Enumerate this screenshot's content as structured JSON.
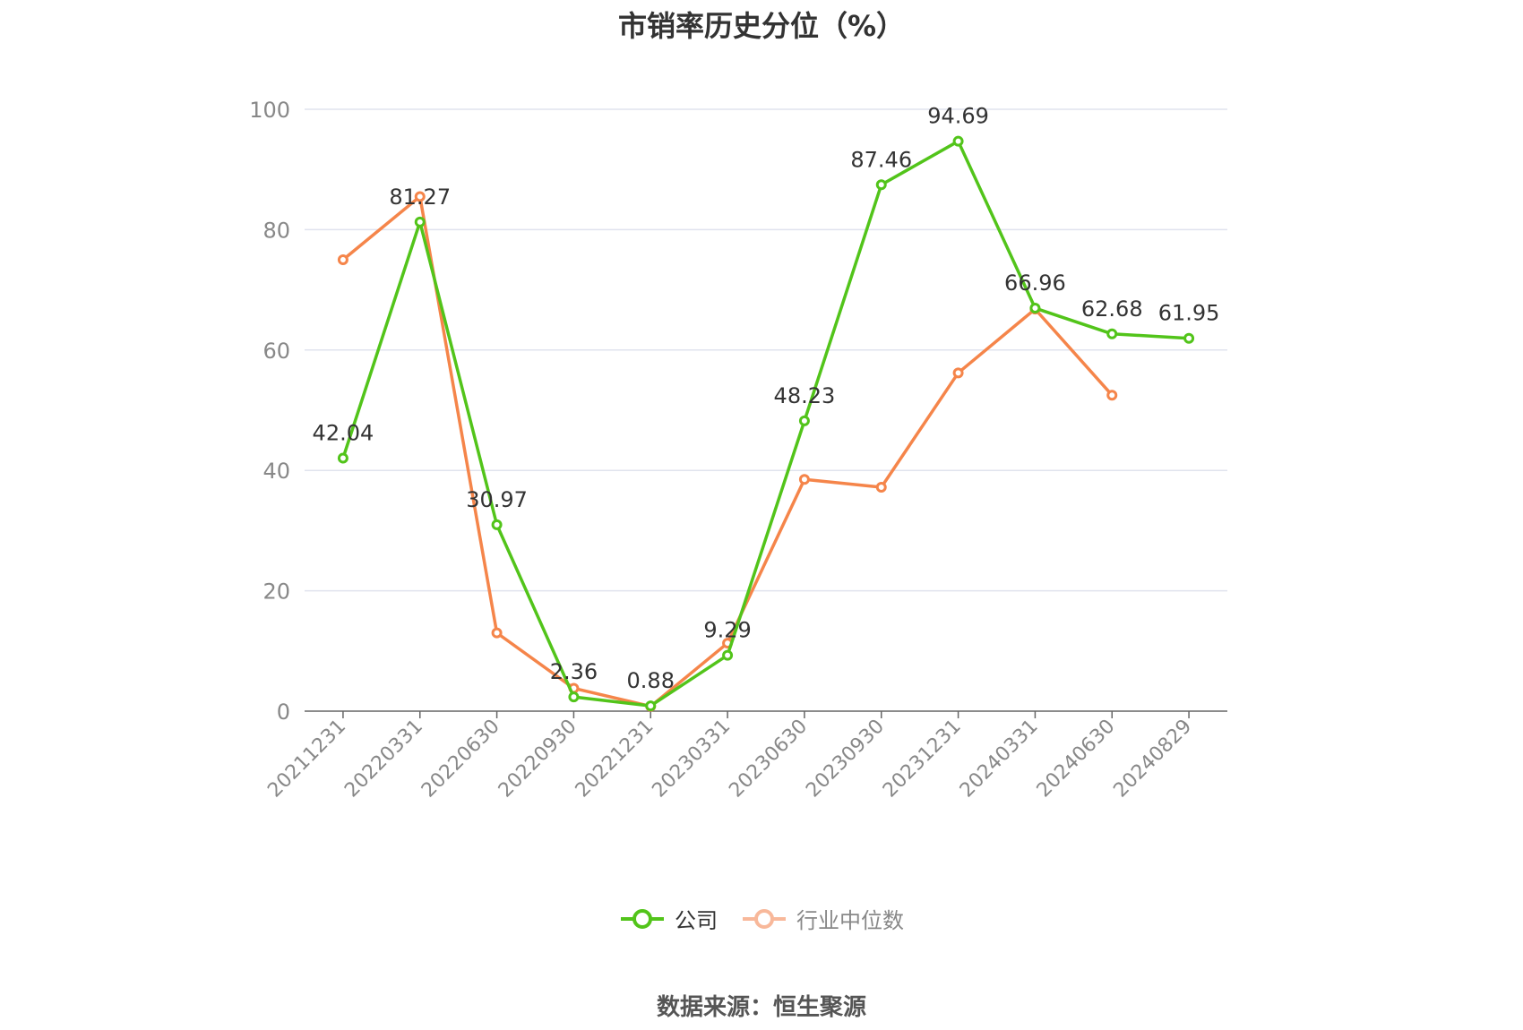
{
  "chart_data": {
    "type": "line",
    "title": "市销率历史分位（%）",
    "categories": [
      "20211231",
      "20220331",
      "20220630",
      "20220930",
      "20221231",
      "20230331",
      "20230630",
      "20230930",
      "20231231",
      "20240331",
      "20240630",
      "20240829"
    ],
    "y_ticks": [
      "0",
      "20",
      "40",
      "60",
      "80",
      "100"
    ],
    "ylim": [
      0,
      100
    ],
    "grid": true,
    "legend_position": "bottom",
    "series": [
      {
        "name": "公司",
        "color": "#52c41a",
        "values": [
          42.04,
          81.27,
          30.97,
          2.36,
          0.88,
          9.29,
          48.23,
          87.46,
          94.69,
          66.96,
          62.68,
          61.95
        ],
        "labels": [
          "42.04",
          "81.27",
          "30.97",
          "2.36",
          "0.88",
          "9.29",
          "48.23",
          "87.46",
          "94.69",
          "66.96",
          "62.68",
          "61.95"
        ]
      },
      {
        "name": "行业中位数",
        "color": "#f5854a",
        "legend_color": "#f8b89a",
        "values": [
          75.0,
          85.5,
          13.0,
          3.8,
          0.8,
          11.3,
          38.5,
          37.2,
          56.2,
          66.8,
          52.5,
          null
        ]
      }
    ]
  },
  "footer": {
    "source": "数据来源：恒生聚源"
  }
}
